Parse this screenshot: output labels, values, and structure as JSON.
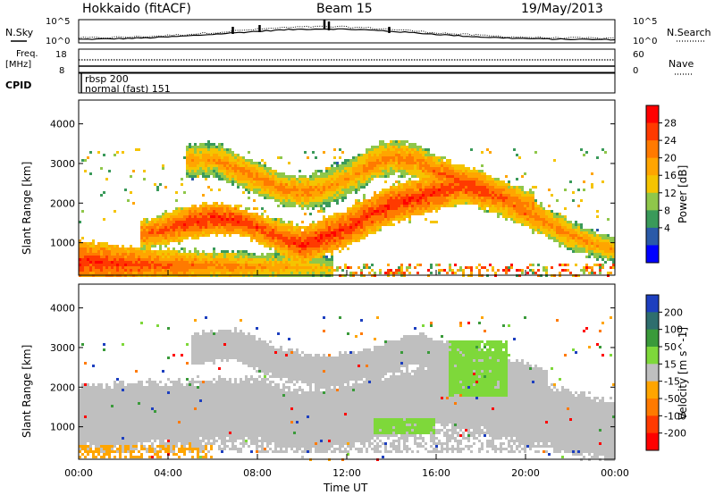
{
  "header": {
    "station": "Hokkaido (fitACF)",
    "beam": "Beam 15",
    "date": "19/May/2013"
  },
  "nsky_panel": {
    "left_label": "N.Sky",
    "right_label": "N.Search",
    "left_ticks": [
      "10^5",
      "10^0"
    ],
    "right_ticks": [
      "10^5",
      "10^0"
    ]
  },
  "freq_panel": {
    "left_label_1": "Freq.",
    "left_label_2": "[MHz]",
    "right_label": "Nave",
    "left_ticks": [
      "18",
      "8"
    ],
    "right_ticks": [
      "60",
      "0"
    ]
  },
  "cpid": {
    "label": "CPID",
    "line1": "rbsp 200",
    "line2": "normal (fast) 151"
  },
  "axes": {
    "ylabel": "Slant Range [km]",
    "xlabel": "Time UT",
    "y_ticks": [
      "1000",
      "2000",
      "3000",
      "4000"
    ],
    "x_ticks": [
      "00:00",
      "04:00",
      "08:00",
      "12:00",
      "16:00",
      "20:00",
      "00:00"
    ]
  },
  "power_colorbar": {
    "title": "Power [dB]",
    "labels": [
      "28",
      "24",
      "20",
      "16",
      "12",
      "8",
      "4"
    ],
    "colors": [
      "#ff0000",
      "#ff3a00",
      "#ff7a00",
      "#ffa500",
      "#f5c400",
      "#8fc74a",
      "#3a9a5a",
      "#2a5aa8",
      "#0000ff"
    ]
  },
  "velocity_colorbar": {
    "title": "Velocity [m s^-1]",
    "labels": [
      "200",
      "100",
      "50",
      "15",
      "-15",
      "-50",
      "-100",
      "-200"
    ],
    "colors": [
      "#1d3fbf",
      "#2e6e6e",
      "#3a9a3a",
      "#7ed83a",
      "#bfbfbf",
      "#ffa500",
      "#ff7a00",
      "#ff3a00",
      "#ff0000"
    ]
  },
  "chart_data": [
    {
      "type": "heatmap",
      "title": "Power",
      "xlabel": "Time UT",
      "ylabel": "Slant Range [km]",
      "xlim": [
        0,
        24
      ],
      "ylim": [
        180,
        4600
      ],
      "colorbar": "Power [dB]",
      "bands": [
        {
          "name": "near-range",
          "t": [
            0,
            1,
            2,
            3,
            4,
            5,
            6,
            7,
            8,
            9,
            10,
            11
          ],
          "r": [
            550,
            520,
            500,
            480,
            460,
            450,
            450,
            430,
            420,
            430,
            400,
            380
          ],
          "w": [
            280,
            260,
            240,
            220,
            220,
            200,
            200,
            200,
            180,
            180,
            170,
            160
          ],
          "p": [
            28,
            28,
            27,
            26,
            24,
            24,
            22,
            22,
            20,
            20,
            18,
            16
          ]
        },
        {
          "name": "main-band",
          "t": [
            3,
            4,
            5,
            6,
            7,
            8,
            9,
            10,
            11,
            12,
            13,
            14,
            15,
            16,
            17,
            18,
            19,
            20,
            21,
            22,
            23,
            24
          ],
          "r": [
            1250,
            1400,
            1550,
            1650,
            1600,
            1400,
            1150,
            950,
            1200,
            1400,
            1750,
            2000,
            2150,
            2300,
            2450,
            2300,
            2100,
            1800,
            1500,
            1200,
            1000,
            850
          ],
          "w": [
            200,
            220,
            220,
            220,
            200,
            200,
            220,
            240,
            250,
            260,
            260,
            250,
            240,
            230,
            220,
            220,
            220,
            210,
            200,
            190,
            180,
            180
          ],
          "p": [
            24,
            26,
            28,
            28,
            28,
            26,
            26,
            28,
            28,
            28,
            28,
            28,
            28,
            28,
            26,
            26,
            24,
            24,
            22,
            22,
            20,
            20
          ]
        },
        {
          "name": "upper-band",
          "t": [
            5,
            6,
            7,
            8,
            9,
            10,
            11,
            12,
            13,
            14,
            15,
            16,
            17,
            18,
            19,
            20
          ],
          "r": [
            3100,
            3150,
            2900,
            2650,
            2400,
            2300,
            2400,
            2650,
            3000,
            3200,
            3100,
            2800,
            2600,
            2400,
            2200,
            2000
          ],
          "w": [
            220,
            220,
            220,
            220,
            220,
            220,
            240,
            240,
            240,
            240,
            230,
            230,
            220,
            220,
            210,
            200
          ],
          "p": [
            20,
            20,
            22,
            22,
            22,
            22,
            20,
            20,
            22,
            22,
            22,
            24,
            26,
            26,
            24,
            22
          ]
        }
      ]
    },
    {
      "type": "heatmap",
      "title": "Velocity",
      "xlabel": "Time UT",
      "ylabel": "Slant Range [km]",
      "xlim": [
        0,
        24
      ],
      "ylim": [
        180,
        4600
      ],
      "colorbar": "Velocity [m s^-1]",
      "regions": [
        {
          "name": "ground-scatter-main",
          "t": [
            0,
            24
          ],
          "r": [
            400,
            2200
          ],
          "v": 0
        },
        {
          "name": "upper-grey",
          "t": [
            6,
            20
          ],
          "r": [
            2100,
            3500
          ],
          "v": 0
        },
        {
          "name": "green-17h",
          "t": [
            16.5,
            19.2
          ],
          "r": [
            1800,
            3200
          ],
          "v": 60
        },
        {
          "name": "green-13h",
          "t": [
            13.0,
            16.0
          ],
          "r": [
            850,
            1250
          ],
          "v": 60
        },
        {
          "name": "orange-near",
          "t": [
            0,
            6
          ],
          "r": [
            250,
            550
          ],
          "v": -40
        }
      ]
    }
  ]
}
